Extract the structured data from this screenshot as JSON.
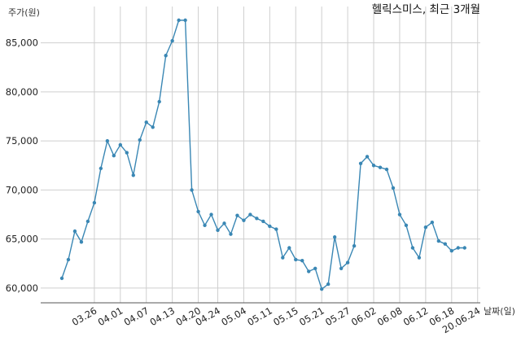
{
  "chart_data": {
    "type": "line",
    "title": "헬릭스미스, 최근 3개월",
    "xlabel": "날짜(일)",
    "ylabel": "주가(원)",
    "ylim": [
      58500,
      88700
    ],
    "y_ticks": [
      60000,
      65000,
      70000,
      75000,
      80000,
      85000
    ],
    "y_tick_labels": [
      "60,000",
      "65,000",
      "70,000",
      "75,000",
      "80,000",
      "85,000"
    ],
    "grid": true,
    "x_ticks": [
      {
        "label": "03.26",
        "at": 5
      },
      {
        "label": "04.01",
        "at": 9
      },
      {
        "label": "04.07",
        "at": 13
      },
      {
        "label": "04.13",
        "at": 17
      },
      {
        "label": "04.20",
        "at": 21
      },
      {
        "label": "04.24",
        "at": 24
      },
      {
        "label": "05.04",
        "at": 28
      },
      {
        "label": "05.11",
        "at": 32
      },
      {
        "label": "05.15",
        "at": 36
      },
      {
        "label": "05.21",
        "at": 40
      },
      {
        "label": "05.27",
        "at": 44
      },
      {
        "label": "06.02",
        "at": 48
      },
      {
        "label": "06.08",
        "at": 52
      },
      {
        "label": "06.12",
        "at": 56
      },
      {
        "label": "06.18",
        "at": 60
      },
      {
        "label": "20.06.24",
        "at": 64
      }
    ],
    "series": [
      {
        "color": "#3a87b4",
        "values": [
          61000,
          62900,
          65800,
          64700,
          66800,
          68700,
          72200,
          75000,
          73500,
          74600,
          73800,
          71500,
          75100,
          76900,
          76400,
          79000,
          83700,
          85200,
          87300,
          87300,
          70000,
          67800,
          66400,
          67500,
          65900,
          66600,
          65500,
          67400,
          66900,
          67500,
          67100,
          66800,
          66300,
          66000,
          63100,
          64100,
          62900,
          62800,
          61700,
          62000,
          59900,
          60400,
          65200,
          62000,
          62600,
          64300,
          72700,
          73400,
          72500,
          72300,
          72100,
          70200,
          67500,
          66400,
          64100,
          63100,
          66200,
          66700,
          64800,
          64500,
          63800,
          64100,
          64100
        ]
      }
    ]
  }
}
